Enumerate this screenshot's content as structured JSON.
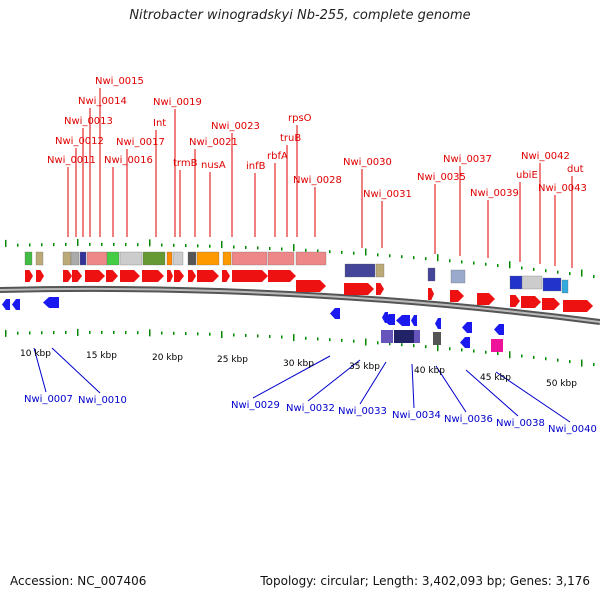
{
  "title": "Nitrobacter winogradskyi Nb-255, complete genome",
  "footer": {
    "accession": "Accession: NC_007406",
    "summary": "Topology: circular; Length: 3,402,093 bp; Genes: 3,176"
  },
  "colors": {
    "forward_label": "#e00000",
    "reverse_label": "#0000cc",
    "forward_gene": "#ee1111",
    "reverse_gene": "#1a1af0",
    "backbone": "#888888",
    "ticks": "#008800"
  },
  "scale_labels": [
    "10 kbp",
    "15 kbp",
    "20 kbp",
    "25 kbp",
    "30 kbp",
    "35 kbp",
    "40 kbp",
    "45 kbp",
    "50 kbp"
  ],
  "forward_labels": [
    "Nwi_0011",
    "Nwi_0012",
    "Nwi_0013",
    "Nwi_0014",
    "Nwi_0015",
    "Nwi_0016",
    "Nwi_0017",
    "Int",
    "Nwi_0019",
    "trmB",
    "Nwi_0021",
    "nusA",
    "Nwi_0023",
    "infB",
    "rbfA",
    "truB",
    "rpsO",
    "Nwi_0028",
    "Nwi_0030",
    "Nwi_0031",
    "Nwi_0035",
    "Nwi_0037",
    "Nwi_0039",
    "ubiE",
    "Nwi_0042",
    "Nwi_0043",
    "dut"
  ],
  "reverse_labels": [
    "Nwi_0007",
    "Nwi_0010",
    "Nwi_0029",
    "Nwi_0032",
    "Nwi_0033",
    "Nwi_0034",
    "Nwi_0036",
    "Nwi_0038",
    "Nwi_0040"
  ]
}
